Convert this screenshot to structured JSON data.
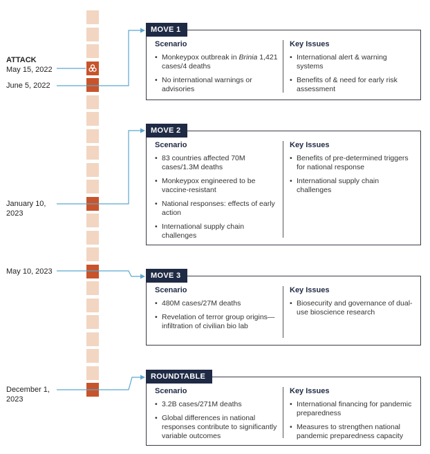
{
  "timeline": {
    "attack": {
      "label": "ATTACK",
      "date": "May 15, 2022"
    },
    "dates": [
      "June 5, 2022",
      "January 10, 2023",
      "May 10, 2023",
      "December 1, 2023"
    ],
    "accent": "#c8542c",
    "track": "#f2d6c2",
    "icon": "biohazard-icon"
  },
  "moves": [
    {
      "title": "MOVE 1",
      "scenario_head": "Scenario",
      "scenario": [
        [
          "Monkeypox outbreak in ",
          "Brinia",
          " 1,421 cases/4 deaths"
        ],
        [
          "No international warnings or advisories"
        ]
      ],
      "issues_head": "Key Issues",
      "issues": [
        "International alert & warning systems",
        "Benefits of & need for early risk assessment"
      ]
    },
    {
      "title": "MOVE 2",
      "scenario_head": "Scenario",
      "scenario": [
        [
          "83 countries affected 70M cases/1.3M deaths"
        ],
        [
          "Monkeypox engineered to be vaccine-resistant"
        ],
        [
          "National responses: effects of early action"
        ],
        [
          "International supply chain challenges"
        ]
      ],
      "issues_head": "Key Issues",
      "issues": [
        "Benefits of pre-determined triggers for national response",
        "International supply chain challenges"
      ]
    },
    {
      "title": "MOVE 3",
      "scenario_head": "Scenario",
      "scenario": [
        [
          "480M cases/27M deaths"
        ],
        [
          "Revelation of terror group origins—infiltration of civilian bio lab"
        ]
      ],
      "issues_head": "Key Issues",
      "issues": [
        "Biosecurity and governance of dual-use bioscience research"
      ]
    },
    {
      "title": "ROUNDTABLE",
      "scenario_head": "Scenario",
      "scenario": [
        [
          "3.2B cases/271M deaths"
        ],
        [
          "Global differences in national responses contribute to significantly variable outcomes"
        ]
      ],
      "issues_head": "Key Issues",
      "issues": [
        "International financing for pandemic preparedness",
        "Measures to strengthen national pandemic preparedness capacity"
      ]
    }
  ]
}
